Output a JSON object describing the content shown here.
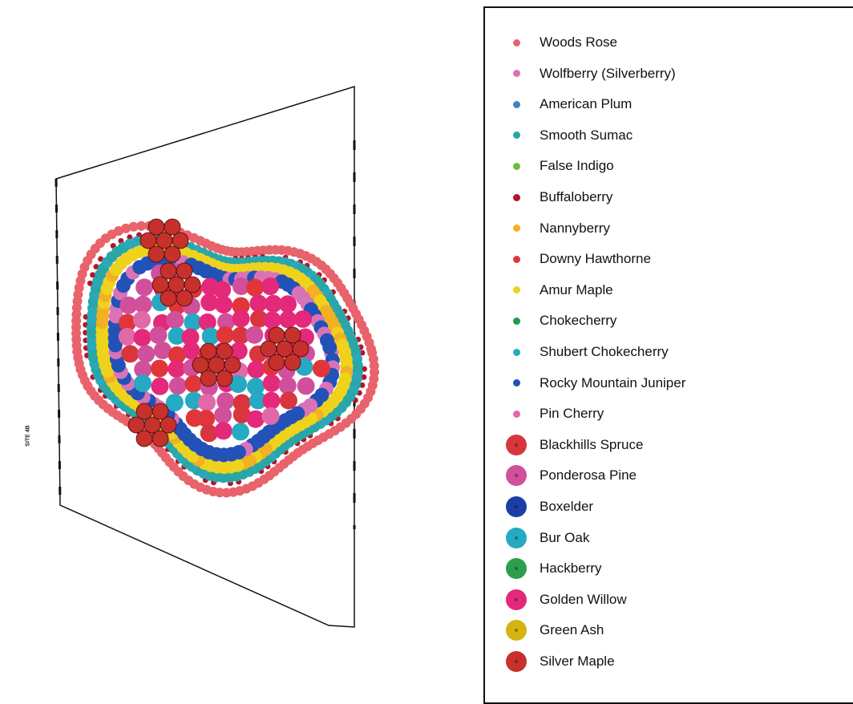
{
  "site_label": "SITE 4B",
  "legend": [
    {
      "label": "Woods Rose",
      "color": "#e8636b",
      "size": "small"
    },
    {
      "label": "Wolfberry (Silverberry)",
      "color": "#d873b8",
      "size": "small"
    },
    {
      "label": "American Plum",
      "color": "#3d86c6",
      "size": "small"
    },
    {
      "label": "Smooth Sumac",
      "color": "#29a6a8",
      "size": "small"
    },
    {
      "label": "False Indigo",
      "color": "#6cbd3f",
      "size": "small"
    },
    {
      "label": "Buffaloberry",
      "color": "#b5142b",
      "size": "small"
    },
    {
      "label": "Nannyberry",
      "color": "#f2b022",
      "size": "small"
    },
    {
      "label": "Downy Hawthorne",
      "color": "#e0363a",
      "size": "small"
    },
    {
      "label": "Amur Maple",
      "color": "#eed21c",
      "size": "small"
    },
    {
      "label": "Chokecherry",
      "color": "#1f9a4a",
      "size": "small"
    },
    {
      "label": "Shubert Chokecherry",
      "color": "#2aa9b8",
      "size": "small"
    },
    {
      "label": "Rocky Mountain Juniper",
      "color": "#2251b8",
      "size": "small"
    },
    {
      "label": "Pin Cherry",
      "color": "#e06aa8",
      "size": "small"
    },
    {
      "label": "Blackhills Spruce",
      "color": "#d8353f",
      "size": "large"
    },
    {
      "label": "Ponderosa Pine",
      "color": "#d0509c",
      "size": "large"
    },
    {
      "label": "Boxelder",
      "color": "#1c3ea8",
      "size": "large"
    },
    {
      "label": "Bur Oak",
      "color": "#26a9c2",
      "size": "large"
    },
    {
      "label": "Hackberry",
      "color": "#2d9e4e",
      "size": "large"
    },
    {
      "label": "Golden Willow",
      "color": "#e4287a",
      "size": "large"
    },
    {
      "label": "Green Ash",
      "color": "#d5b40f",
      "size": "large"
    },
    {
      "label": "Silver Maple",
      "color": "#c8302b",
      "size": "large"
    }
  ]
}
